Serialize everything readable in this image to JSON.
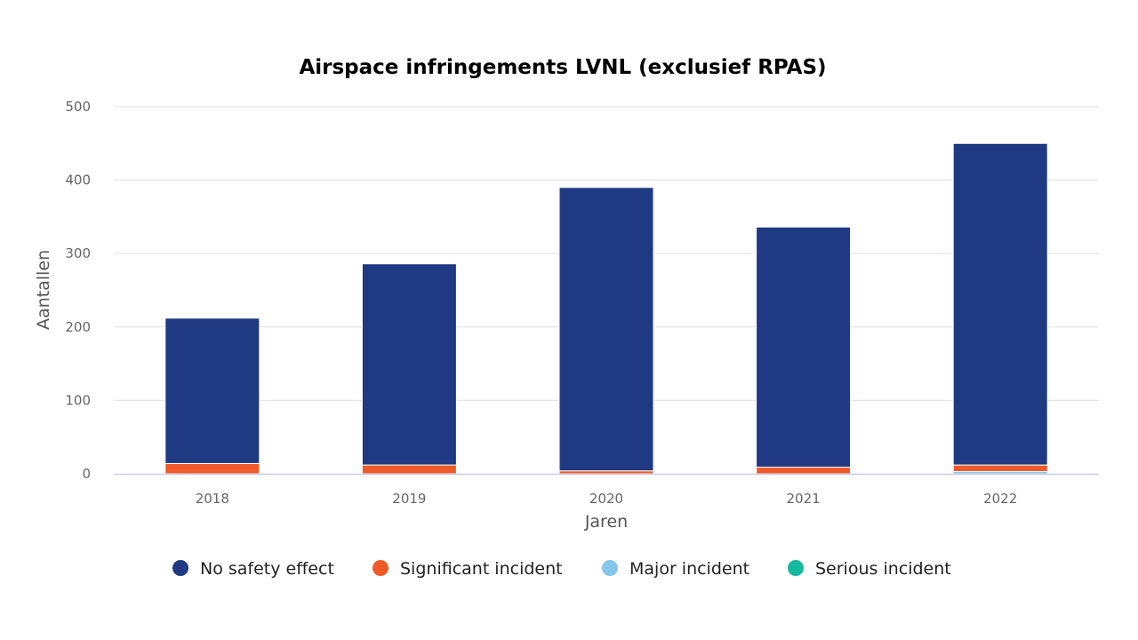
{
  "chart_data": {
    "type": "bar",
    "stacked": true,
    "title": "Airspace infringements LVNL (exclusief RPAS)",
    "xlabel": "Jaren",
    "ylabel": "Aantallen",
    "categories": [
      "2018",
      "2019",
      "2020",
      "2021",
      "2022"
    ],
    "ylim": [
      0,
      500
    ],
    "yticks": [
      0,
      100,
      200,
      300,
      400,
      500
    ],
    "grid": true,
    "legend_position": "bottom",
    "series": [
      {
        "name": "Serious incident",
        "color": "#17b8a0",
        "values": [
          0,
          0,
          0,
          0,
          0
        ]
      },
      {
        "name": "Major incident",
        "color": "#85c7ea",
        "values": [
          0,
          0,
          0,
          0,
          3
        ]
      },
      {
        "name": "Significant incident",
        "color": "#f05a28",
        "values": [
          14,
          12,
          4,
          9,
          9
        ]
      },
      {
        "name": "No safety effect",
        "color": "#1f3a82",
        "values": [
          198,
          274,
          386,
          327,
          438
        ]
      }
    ],
    "legend_order": [
      "No safety effect",
      "Significant incident",
      "Major incident",
      "Serious incident"
    ]
  }
}
